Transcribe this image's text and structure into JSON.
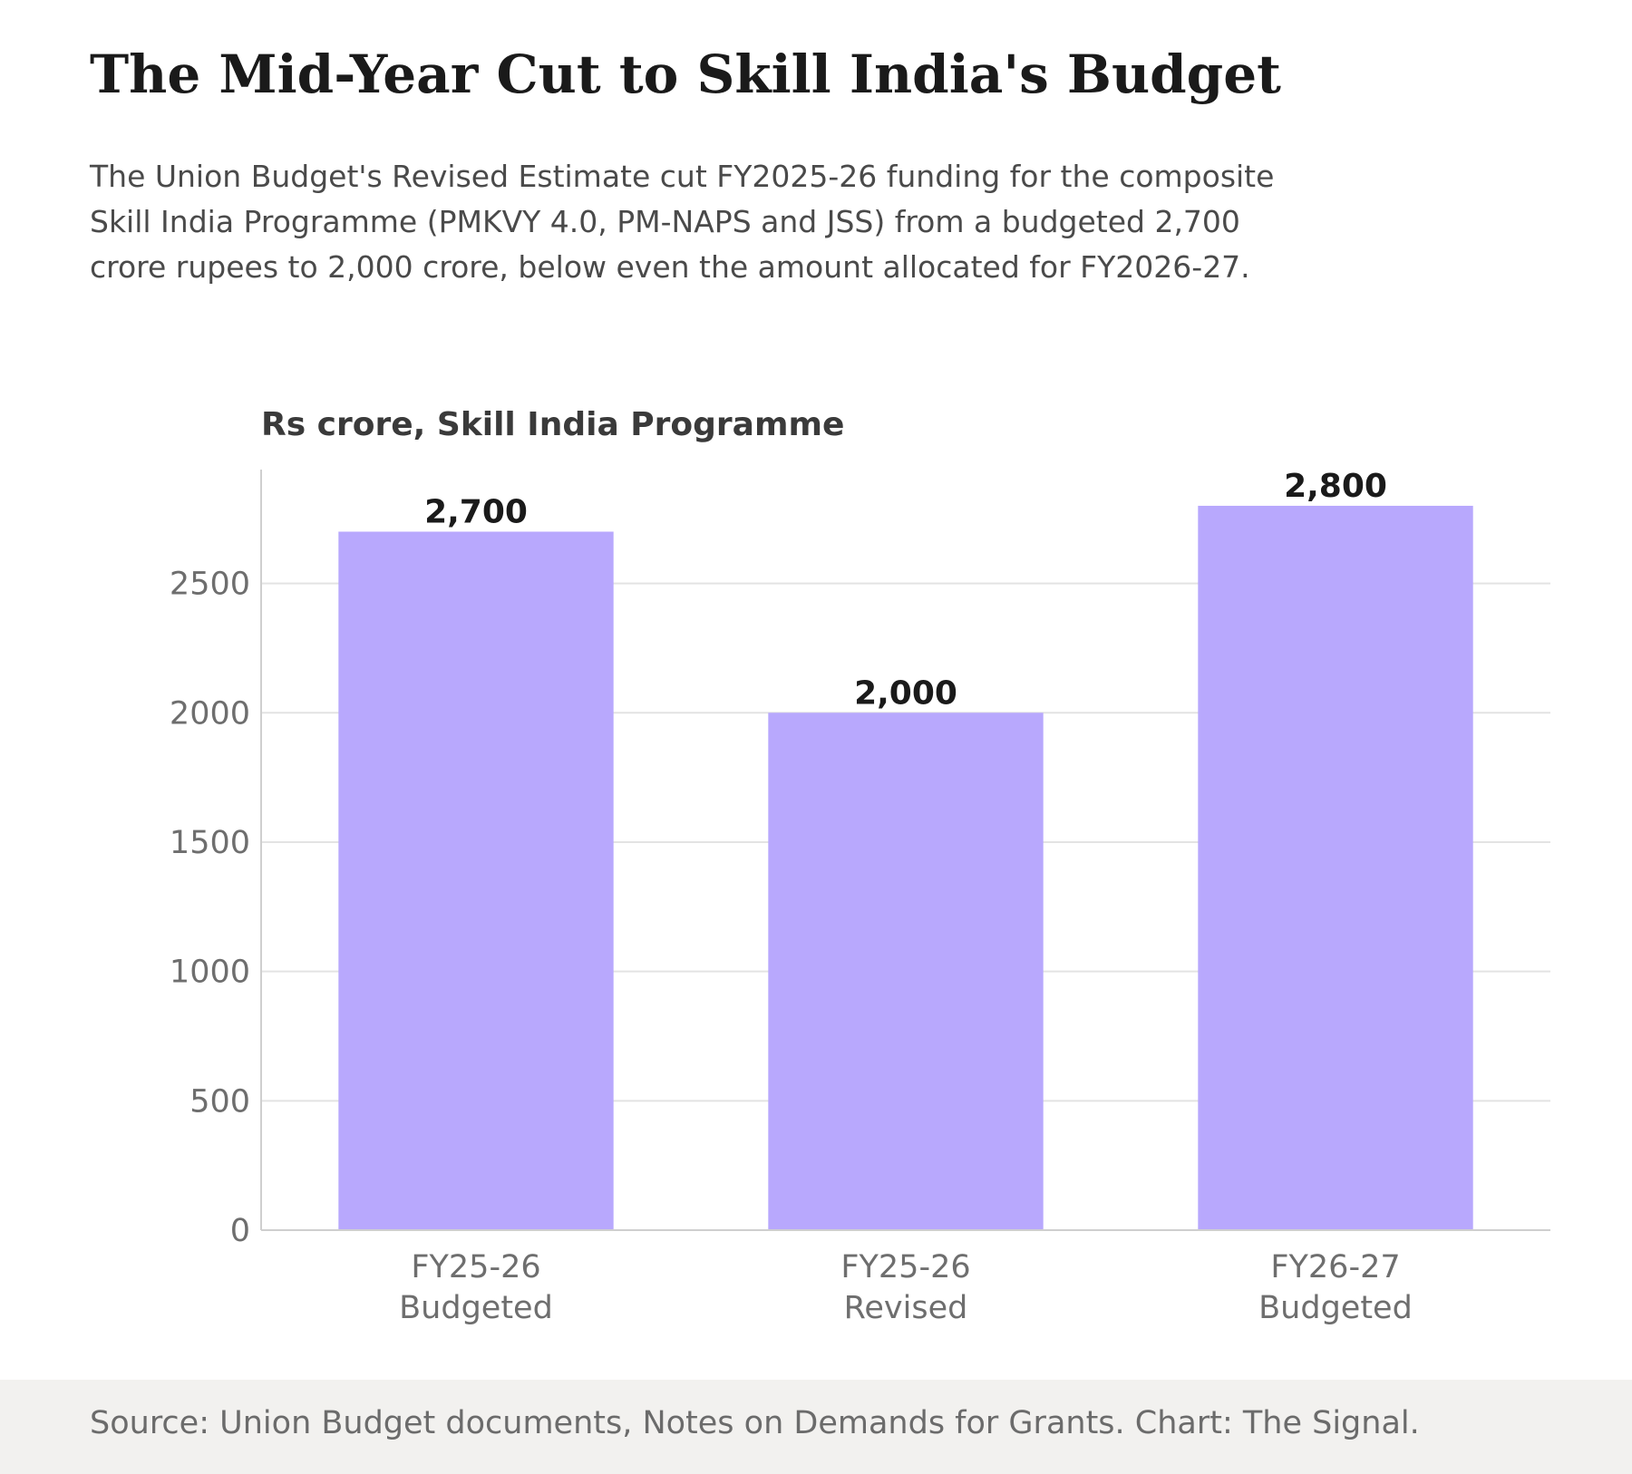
{
  "header": {
    "title": "The Mid-Year Cut to Skill India's Budget",
    "subtitle": "The Union Budget's Revised Estimate cut FY2025-26 funding for the composite Skill India Programme (PMKVY 4.0, PM-NAPS and JSS) from a budgeted 2,700 crore rupees to 2,000 crore, below even the amount allocated for FY2026-27."
  },
  "chart_data": {
    "type": "bar",
    "title": "The Mid-Year Cut to Skill India's Budget",
    "ylabel": "Rs crore, Skill India Programme",
    "xlabel": "",
    "categories": [
      [
        "FY25-26",
        "Budgeted"
      ],
      [
        "FY25-26",
        "Revised"
      ],
      [
        "FY26-27",
        "Budgeted"
      ]
    ],
    "values": [
      2700,
      2000,
      2800
    ],
    "value_labels": [
      "2,700",
      "2,000",
      "2,800"
    ],
    "ylim": [
      0,
      2940
    ],
    "yticks": [
      0,
      500,
      1000,
      1500,
      2000,
      2500
    ],
    "grid": "horizontal",
    "bar_color": "#b8a8fd",
    "gridline_color": "#e3e3e3",
    "axis_color": "#cfcfcf",
    "tick_label_color": "#6e6e6e",
    "value_label_color": "#1a1a1a"
  },
  "footer": {
    "source": "Source: Union Budget documents, Notes on Demands for Grants. Chart: The Signal."
  }
}
